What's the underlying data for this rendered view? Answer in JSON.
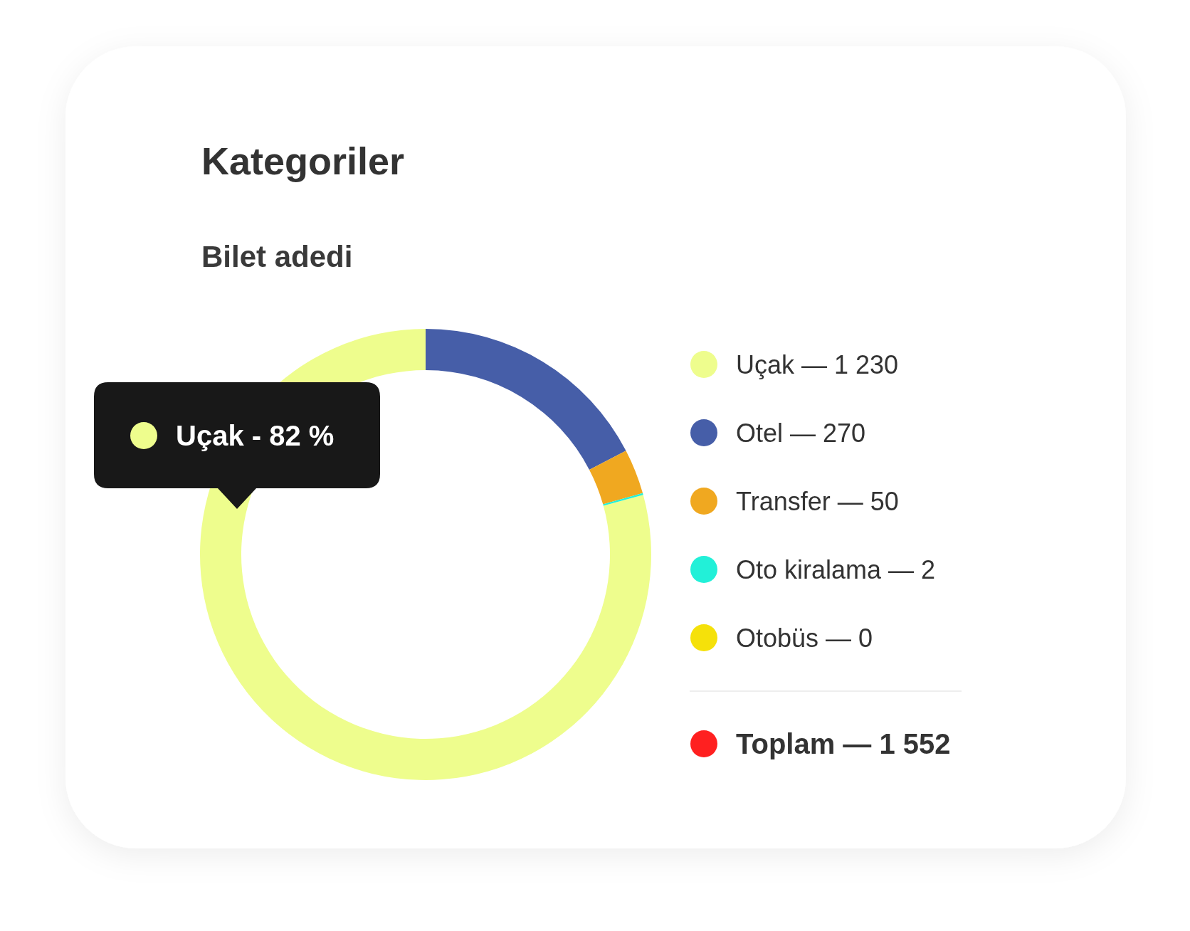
{
  "chart_data": {
    "type": "donut",
    "title": "Kategoriler",
    "subtitle": "Bilet adedi",
    "categories": [
      "Uçak — 1 230",
      "Otel — 270",
      "Transfer — 50",
      "Oto kiralama — 2",
      "Otobüs — 0"
    ],
    "values": [
      1230,
      270,
      50,
      2,
      0
    ],
    "colors": [
      "#eefd8d",
      "#465ea8",
      "#f0a820",
      "#22f0d8",
      "#f5e10a"
    ],
    "legend": "right",
    "annotations": [
      "Uçak - 82 %",
      "Toplam — 1 552"
    ]
  }
}
